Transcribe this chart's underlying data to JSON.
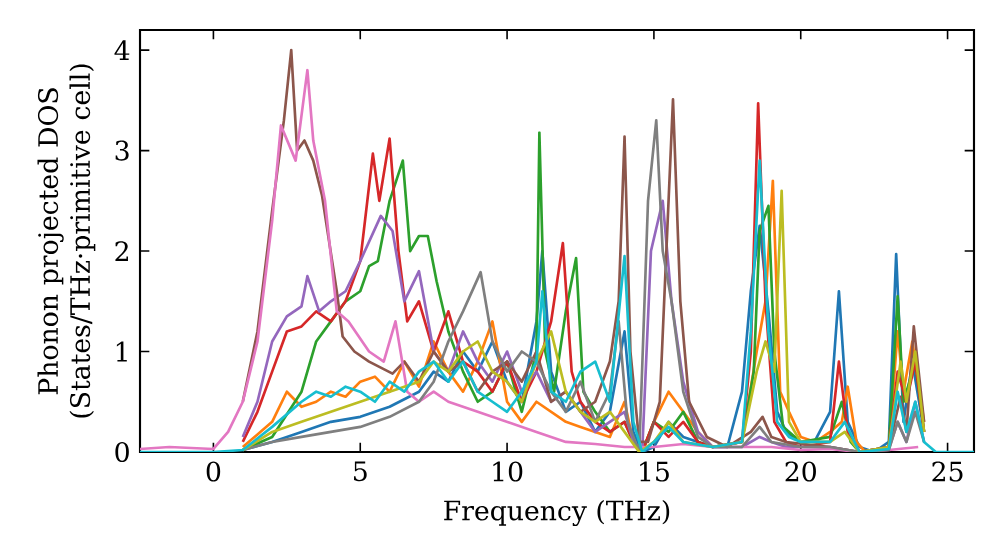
{
  "chart_data": {
    "type": "line",
    "xlabel": "Frequency (THz)",
    "ylabel": "Phonon projected DOS (States/THz·primitive cell)",
    "xlim": [
      -2.5,
      25.9
    ],
    "ylim": [
      0,
      4.2
    ],
    "xticks": [
      0,
      5,
      10,
      15,
      20,
      25
    ],
    "yticks": [
      0,
      1,
      2,
      3,
      4
    ],
    "line_style": "solid",
    "series": [
      {
        "color": "#1f77b4",
        "x": [
          1,
          2,
          3,
          4,
          5,
          6,
          7,
          7.5,
          8,
          8.5,
          9,
          9.5,
          10,
          10.5,
          11,
          11.2,
          11.5,
          12,
          12.5,
          13,
          13.5,
          14,
          14.3,
          14.6,
          15,
          15.5,
          16,
          16.5,
          17,
          17.5,
          18,
          18.3,
          18.6,
          18.9,
          19.2,
          19.5,
          20,
          20.5,
          21,
          21.3,
          21.6,
          22,
          22.5,
          23,
          23.25,
          23.5,
          23.8,
          24.2
        ],
        "values": [
          0.02,
          0.1,
          0.2,
          0.3,
          0.35,
          0.45,
          0.6,
          0.8,
          0.7,
          1.0,
          0.8,
          1.1,
          0.7,
          0.5,
          1.3,
          2.0,
          0.8,
          0.4,
          0.5,
          0.2,
          0.4,
          1.2,
          0.2,
          0,
          0.05,
          0.3,
          0.15,
          0.1,
          0.05,
          0.05,
          0.6,
          1.6,
          2.25,
          1.4,
          0.4,
          0.2,
          0.1,
          0.12,
          0.4,
          1.6,
          0.3,
          0.05,
          0,
          0.1,
          1.97,
          0.3,
          0.9,
          0.2
        ]
      },
      {
        "color": "#ff7f0e",
        "x": [
          1,
          2,
          2.5,
          3,
          3.5,
          4,
          4.5,
          5,
          5.5,
          6,
          6.5,
          7,
          7.5,
          8,
          8.5,
          9,
          9.5,
          10,
          10.5,
          11,
          11.5,
          12,
          12.5,
          13,
          13.5,
          14,
          14.3,
          14.6,
          15,
          15.5,
          16,
          16.5,
          17,
          18,
          18.5,
          18.8,
          19.05,
          19.3,
          19.6,
          20,
          20.5,
          21,
          21.4,
          21.6,
          21.9,
          22.2,
          23,
          23.3,
          23.5,
          23.8,
          24.2
        ],
        "values": [
          0.05,
          0.3,
          0.6,
          0.45,
          0.5,
          0.6,
          0.55,
          0.7,
          0.75,
          0.6,
          0.9,
          0.65,
          1.1,
          0.8,
          0.6,
          0.9,
          1.3,
          0.5,
          0.3,
          0.5,
          0.4,
          0.3,
          0.25,
          0.2,
          0.15,
          0.5,
          0.1,
          0,
          0.3,
          0.6,
          0.4,
          0.2,
          0.05,
          0.1,
          1.0,
          1.5,
          2.7,
          0.6,
          0.4,
          0.15,
          0.1,
          0.2,
          0.3,
          0.65,
          0.1,
          0,
          0.05,
          1.2,
          0.6,
          1.1,
          0.3
        ]
      },
      {
        "color": "#2ca02c",
        "x": [
          1,
          2,
          3,
          3.5,
          4,
          4.5,
          5,
          5.3,
          5.6,
          6,
          6.45,
          6.7,
          7,
          7.3,
          7.6,
          8,
          8.5,
          9,
          9.5,
          10,
          10.5,
          11,
          11.1,
          11.3,
          11.6,
          12,
          12.35,
          12.6,
          13,
          13.5,
          14,
          14.3,
          14.6,
          15,
          15.5,
          16,
          16.5,
          17,
          18,
          18.4,
          18.6,
          18.9,
          19.1,
          19.4,
          20,
          21,
          21.4,
          21.7,
          22,
          23,
          23.3,
          23.5,
          23.9,
          24.2
        ],
        "values": [
          0.02,
          0.15,
          0.6,
          1.1,
          1.3,
          1.5,
          1.6,
          1.85,
          1.9,
          2.5,
          2.9,
          2.0,
          2.15,
          2.15,
          1.7,
          1.2,
          0.8,
          0.5,
          0.6,
          0.9,
          0.4,
          1.0,
          3.18,
          1.0,
          0.6,
          1.4,
          1.93,
          0.6,
          0.4,
          0.2,
          0.3,
          0.1,
          0,
          0.3,
          0.2,
          0.4,
          0.1,
          0.05,
          0.1,
          0.8,
          2.2,
          2.45,
          1.0,
          0.25,
          0.1,
          0.15,
          0.5,
          0.1,
          0,
          0.05,
          1.55,
          0.5,
          0.9,
          0.2
        ]
      },
      {
        "color": "#d62728",
        "x": [
          1,
          1.5,
          2,
          2.5,
          3,
          3.5,
          4,
          4.5,
          5,
          5.43,
          5.65,
          6,
          6.3,
          6.6,
          7,
          7.5,
          8,
          8.5,
          9,
          9.5,
          10,
          10.5,
          11,
          11.5,
          11.9,
          12.2,
          12.5,
          13,
          13.5,
          14,
          14.3,
          14.6,
          15,
          15.5,
          16,
          16.5,
          17,
          18,
          18.3,
          18.55,
          18.8,
          19.1,
          19.5,
          20,
          21,
          21.3,
          21.6,
          22,
          23,
          23.3,
          23.6,
          23.9,
          24.2
        ],
        "values": [
          0.1,
          0.4,
          0.8,
          1.2,
          1.25,
          1.4,
          1.3,
          1.5,
          1.9,
          2.97,
          2.5,
          3.12,
          2.0,
          1.3,
          1.5,
          1.0,
          1.4,
          0.9,
          0.8,
          0.6,
          0.9,
          0.5,
          0.8,
          1.3,
          2.08,
          0.8,
          0.5,
          0.3,
          0.2,
          0.3,
          0.1,
          0,
          0.3,
          0.15,
          0.3,
          0.1,
          0.05,
          0.1,
          1.0,
          3.47,
          1.5,
          0.3,
          0.1,
          0.05,
          0.1,
          0.9,
          0.2,
          0,
          0.05,
          0.8,
          0.5,
          0.9,
          0.2
        ]
      },
      {
        "color": "#9467bd",
        "x": [
          1,
          1.5,
          2,
          2.5,
          3,
          3.2,
          3.6,
          4,
          4.5,
          5,
          5.7,
          6.1,
          6.5,
          7,
          7.5,
          8,
          8.5,
          9,
          9.5,
          10,
          10.5,
          11,
          11.5,
          12,
          12.5,
          13,
          13.5,
          14,
          14.3,
          14.6,
          14.9,
          15.3,
          15.6,
          16,
          16.5,
          17,
          18,
          18.6,
          19,
          19.5,
          21,
          22,
          23,
          23.3,
          23.6,
          23.9,
          24.2
        ],
        "values": [
          0.15,
          0.5,
          1.1,
          1.35,
          1.45,
          1.75,
          1.4,
          1.5,
          1.6,
          1.9,
          2.35,
          2.2,
          1.5,
          1.8,
          1.0,
          0.8,
          1.2,
          0.9,
          0.7,
          1.0,
          0.6,
          0.8,
          0.5,
          0.6,
          0.4,
          0.2,
          0.3,
          0.4,
          0.1,
          0,
          2.0,
          2.5,
          1.5,
          0.7,
          0.2,
          0.05,
          0.05,
          0.15,
          0.1,
          0.05,
          0.05,
          0,
          0.03,
          0.3,
          0.1,
          0.5,
          0.1
        ]
      },
      {
        "color": "#8c564b",
        "x": [
          1,
          1.5,
          2,
          2.4,
          2.65,
          2.85,
          3.1,
          3.4,
          3.7,
          4.2,
          4.4,
          4.8,
          5.3,
          6.1,
          6.5,
          7,
          7.5,
          8,
          8.5,
          9,
          9.5,
          10,
          10.5,
          11,
          11.5,
          12,
          12.5,
          13,
          13.5,
          13.8,
          14.0,
          14.2,
          14.5,
          14.8,
          15.2,
          15.65,
          15.9,
          16.2,
          16.8,
          17.5,
          18.3,
          18.7,
          19,
          19.5,
          21,
          22,
          23,
          23.4,
          23.6,
          23.85,
          24.2
        ],
        "values": [
          0.5,
          1.2,
          2.4,
          3.3,
          4.0,
          3.0,
          3.1,
          2.9,
          2.55,
          1.6,
          1.15,
          1.0,
          0.9,
          0.78,
          0.9,
          0.7,
          1.0,
          0.8,
          0.9,
          0.6,
          0.8,
          0.9,
          0.7,
          1.0,
          0.5,
          0.6,
          0.4,
          0.5,
          0.9,
          1.5,
          3.14,
          1.0,
          0.1,
          0.1,
          0.5,
          3.51,
          1.5,
          0.5,
          0.15,
          0.05,
          0.2,
          0.35,
          0.15,
          0.1,
          0.05,
          0,
          0.05,
          0.55,
          0.2,
          1.25,
          0.3
        ]
      },
      {
        "color": "#e377c2",
        "x": [
          -2.5,
          -1.5,
          0,
          0.5,
          1,
          1.5,
          2,
          2.3,
          2.8,
          3.2,
          3.4,
          3.8,
          4.2,
          4.6,
          5.3,
          5.8,
          6.2,
          6.6,
          7,
          7.5,
          8,
          9,
          10,
          11,
          12,
          13,
          14,
          15,
          16,
          17,
          18,
          19,
          20,
          21,
          22,
          23,
          24
        ],
        "values": [
          0.03,
          0.05,
          0.03,
          0.2,
          0.5,
          1.1,
          2.3,
          3.25,
          2.9,
          3.8,
          3.1,
          2.5,
          1.4,
          1.3,
          1.0,
          0.9,
          1.3,
          0.6,
          0.5,
          0.6,
          0.5,
          0.4,
          0.3,
          0.2,
          0.1,
          0.08,
          0.05,
          0.05,
          0.08,
          0.05,
          0.05,
          0.05,
          0.02,
          0.03,
          0,
          0.02,
          0.05
        ]
      },
      {
        "color": "#7f7f7f",
        "x": [
          1,
          2,
          3,
          4,
          5,
          6,
          7,
          7.5,
          8,
          8.5,
          9.1,
          9.5,
          10,
          10.5,
          11,
          11.5,
          12,
          12.5,
          13,
          13.5,
          13.8,
          14.1,
          14.5,
          14.8,
          15.08,
          15.3,
          15.6,
          16,
          16.5,
          17,
          18,
          18.6,
          19,
          20,
          21,
          22,
          23,
          23.3,
          23.6,
          23.9,
          24.2
        ],
        "values": [
          0.02,
          0.1,
          0.15,
          0.2,
          0.25,
          0.35,
          0.5,
          0.7,
          1.1,
          1.4,
          1.79,
          1.1,
          0.8,
          1.0,
          0.9,
          0.6,
          0.4,
          0.7,
          0.3,
          0.6,
          1.3,
          0.3,
          0,
          2.5,
          3.3,
          2.0,
          1.5,
          0.6,
          0.15,
          0.05,
          0.05,
          0.25,
          0.1,
          0.05,
          0.05,
          0,
          0.02,
          0.3,
          0.1,
          0.4,
          0.1
        ]
      },
      {
        "color": "#bcbd22",
        "x": [
          1,
          2,
          3,
          4,
          5,
          6,
          7,
          7.5,
          8,
          8.5,
          9,
          9.5,
          10,
          10.5,
          11,
          11.5,
          12,
          12.5,
          13,
          13.5,
          14,
          14.5,
          15,
          15.5,
          16,
          17,
          18,
          18.5,
          18.8,
          19.1,
          19.35,
          19.6,
          20,
          21,
          21.5,
          22,
          23,
          23.4,
          23.6,
          23.9,
          24.2
        ],
        "values": [
          0.02,
          0.2,
          0.3,
          0.4,
          0.5,
          0.6,
          0.7,
          0.9,
          0.8,
          1.0,
          1.1,
          0.8,
          0.7,
          0.5,
          0.9,
          1.2,
          0.6,
          0.4,
          0.3,
          0.4,
          0.2,
          0,
          0.1,
          0.3,
          0.1,
          0.05,
          0.1,
          0.8,
          1.1,
          0.8,
          2.6,
          0.3,
          0.1,
          0.1,
          0.2,
          0,
          0.05,
          0.9,
          0.5,
          1.0,
          0.2
        ]
      },
      {
        "color": "#17becf",
        "x": [
          -2.5,
          0,
          1,
          2,
          3,
          3.5,
          4,
          4.5,
          5,
          5.5,
          6,
          6.5,
          7,
          7.5,
          8,
          8.5,
          9,
          9.5,
          10,
          10.5,
          11,
          11.2,
          11.5,
          12,
          12.5,
          13,
          13.5,
          14,
          14.3,
          14.6,
          15,
          15.5,
          16,
          17,
          18,
          18.3,
          18.6,
          18.9,
          19.2,
          19.6,
          20,
          21,
          21.5,
          22,
          23,
          23.3,
          23.6,
          23.9,
          24.2,
          24.6,
          25.9
        ],
        "values": [
          0,
          0,
          0.02,
          0.25,
          0.5,
          0.6,
          0.55,
          0.65,
          0.6,
          0.5,
          0.7,
          0.6,
          0.8,
          0.9,
          0.7,
          0.9,
          0.6,
          0.5,
          0.4,
          0.6,
          0.9,
          1.6,
          0.6,
          0.5,
          0.8,
          0.9,
          0.5,
          1.95,
          0.3,
          0,
          0.1,
          0.25,
          0.1,
          0.05,
          0.1,
          1.2,
          2.9,
          1.2,
          0.3,
          0.15,
          0.1,
          0.1,
          0.3,
          0,
          0.03,
          0.6,
          0.2,
          0.5,
          0.1,
          0,
          0
        ]
      }
    ]
  }
}
